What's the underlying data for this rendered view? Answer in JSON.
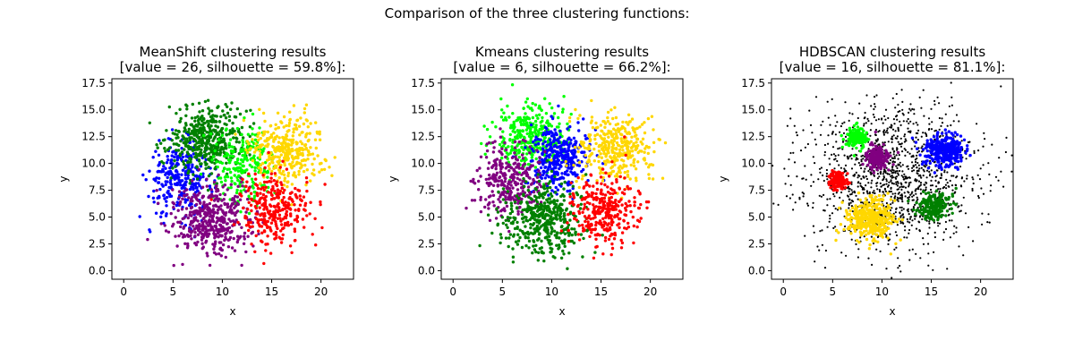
{
  "figure": {
    "suptitle": "Comparison of the three clustering functions:"
  },
  "chart_data": [
    {
      "type": "scatter",
      "title": "MeanShift clustering results",
      "subtitle": "[value = 26, silhouette = 59.8%]:",
      "xlabel": "x",
      "ylabel": "y",
      "xlim": [
        -1.2,
        23.3
      ],
      "ylim": [
        -0.8,
        17.9
      ],
      "xticks": [
        0,
        5,
        10,
        15,
        20
      ],
      "yticks": [
        0.0,
        2.5,
        5.0,
        7.5,
        10.0,
        12.5,
        15.0,
        17.5
      ],
      "grid": false,
      "series": [
        {
          "color": "#0000ff",
          "center": [
            5.8,
            8.5
          ],
          "spread": [
            1.6,
            1.7
          ],
          "count": 300
        },
        {
          "color": "#008000",
          "center": [
            8.5,
            12.3
          ],
          "spread": [
            2.0,
            1.6
          ],
          "count": 450
        },
        {
          "color": "#00ff00",
          "center": [
            12.3,
            9.8
          ],
          "spread": [
            1.4,
            1.8
          ],
          "count": 220
        },
        {
          "color": "#ffd700",
          "center": [
            16.5,
            11.3
          ],
          "spread": [
            1.9,
            1.6
          ],
          "count": 350
        },
        {
          "color": "#800080",
          "center": [
            9.0,
            4.8
          ],
          "spread": [
            2.1,
            1.6
          ],
          "count": 450
        },
        {
          "color": "#ff0000",
          "center": [
            15.2,
            5.8
          ],
          "spread": [
            1.7,
            1.6
          ],
          "count": 300
        }
      ]
    },
    {
      "type": "scatter",
      "title": "Kmeans clustering results",
      "subtitle": "[value = 6, silhouette = 66.2%]:",
      "xlabel": "x",
      "ylabel": "y",
      "xlim": [
        -1.2,
        23.3
      ],
      "ylim": [
        -0.8,
        17.9
      ],
      "xticks": [
        0,
        5,
        10,
        15,
        20
      ],
      "yticks": [
        0.0,
        2.5,
        5.0,
        7.5,
        10.0,
        12.5,
        15.0,
        17.5
      ],
      "grid": false,
      "series": [
        {
          "color": "#00ff00",
          "center": [
            7.8,
            12.6
          ],
          "spread": [
            1.7,
            1.5
          ],
          "count": 350
        },
        {
          "color": "#0000ff",
          "center": [
            10.8,
            10.5
          ],
          "spread": [
            1.4,
            1.5
          ],
          "count": 350
        },
        {
          "color": "#ffd700",
          "center": [
            16.5,
            11.3
          ],
          "spread": [
            1.9,
            1.6
          ],
          "count": 350
        },
        {
          "color": "#800080",
          "center": [
            5.7,
            8.3
          ],
          "spread": [
            1.6,
            1.7
          ],
          "count": 300
        },
        {
          "color": "#008000",
          "center": [
            9.0,
            4.8
          ],
          "spread": [
            2.1,
            1.6
          ],
          "count": 450
        },
        {
          "color": "#ff0000",
          "center": [
            15.2,
            5.8
          ],
          "spread": [
            1.7,
            1.6
          ],
          "count": 320
        }
      ]
    },
    {
      "type": "scatter",
      "title": "HDBSCAN clustering results",
      "subtitle": "[value = 16, silhouette = 81.1%]:",
      "xlabel": "x",
      "ylabel": "y",
      "xlim": [
        -1.2,
        23.3
      ],
      "ylim": [
        -0.8,
        17.9
      ],
      "xticks": [
        0,
        5,
        10,
        15,
        20
      ],
      "yticks": [
        0.0,
        2.5,
        5.0,
        7.5,
        10.0,
        12.5,
        15.0,
        17.5
      ],
      "grid": false,
      "series": [
        {
          "color": "#000000",
          "noise": true,
          "center": [
            11.0,
            8.8
          ],
          "spread": [
            4.6,
            3.6
          ],
          "count": 1300
        },
        {
          "color": "#00ff00",
          "center": [
            7.4,
            12.4
          ],
          "spread": [
            0.55,
            0.45
          ],
          "count": 160
        },
        {
          "color": "#800080",
          "center": [
            9.5,
            10.5
          ],
          "spread": [
            0.6,
            0.55
          ],
          "count": 180
        },
        {
          "color": "#ff0000",
          "center": [
            5.6,
            8.4
          ],
          "spread": [
            0.45,
            0.45
          ],
          "count": 140
        },
        {
          "color": "#0000ff",
          "center": [
            16.3,
            11.2
          ],
          "spread": [
            1.0,
            0.75
          ],
          "count": 320
        },
        {
          "color": "#ffd700",
          "center": [
            8.8,
            4.9
          ],
          "spread": [
            1.2,
            0.9
          ],
          "count": 380
        },
        {
          "color": "#008000",
          "center": [
            15.3,
            6.0
          ],
          "spread": [
            0.85,
            0.65
          ],
          "count": 200
        }
      ]
    }
  ]
}
